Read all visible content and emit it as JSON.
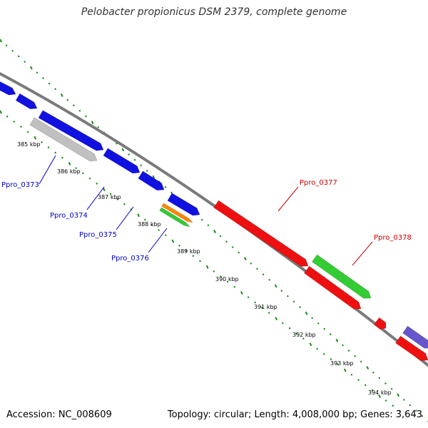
{
  "title": "Pelobacter propionicus DSM 2379, complete genome",
  "footer": {
    "accession": "Accession: NC_008609",
    "summary": "Topology: circular; Length: 4,008,000 bp; Genes: 3,643"
  },
  "colors": {
    "backbone": "#7a7a7a",
    "tick": "#1a8a1a",
    "forward_gene": "#1010e0",
    "reverse_gene": "#ee1010",
    "rna_gene": "#33cc33",
    "orange_gene": "#ff8800",
    "pseudo_gene": "#c0c0c0",
    "purple_gene": "#6655cc",
    "label_blue": "#0000cc",
    "label_red": "#cc0000"
  },
  "ticks": [
    {
      "label": "385 kbp"
    },
    {
      "label": "386 kbp"
    },
    {
      "label": "387 kbp"
    },
    {
      "label": "388 kbp"
    },
    {
      "label": "389 kbp"
    },
    {
      "label": "390 kbp"
    },
    {
      "label": "391 kbp"
    },
    {
      "label": "392 kbp"
    },
    {
      "label": "393 kbp"
    },
    {
      "label": "394 kbp"
    }
  ],
  "genes": [
    {
      "id": "Ppro_0373",
      "label": "Ppro_0373",
      "type": "pseudo_gene",
      "label_color": "label_blue"
    },
    {
      "id": "Ppro_0374",
      "label": "Ppro_0374",
      "type": "forward_gene",
      "label_color": "label_blue"
    },
    {
      "id": "Ppro_0375",
      "label": "Ppro_0375",
      "type": "orange_gene",
      "label_color": "label_blue"
    },
    {
      "id": "Ppro_0376",
      "label": "Ppro_0376",
      "type": "rna_gene",
      "label_color": "label_blue"
    },
    {
      "id": "Ppro_0377",
      "label": "Ppro_0377",
      "type": "reverse_gene",
      "label_color": "label_red"
    },
    {
      "id": "Ppro_0378",
      "label": "Ppro_0378",
      "type": "rna_gene",
      "label_color": "label_red"
    }
  ]
}
